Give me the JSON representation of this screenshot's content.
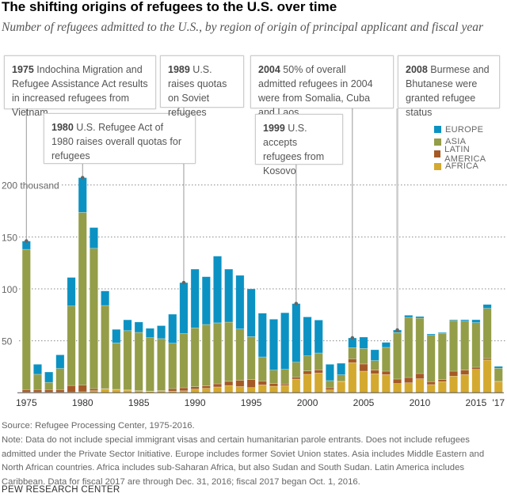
{
  "header": {
    "title": "The shifting origins of refugees to the U.S. over time",
    "subtitle": "Number of refugees admitted to the U.S., by region of origin of principal applicant and fiscal year"
  },
  "annotations": [
    {
      "year": "1975",
      "text": " Indochina Migration and Refugee Assistance Act results in increased refugees from Vietnam"
    },
    {
      "year": "1980",
      "text": " U.S. Refugee Act of 1980 raises overall quotas for refugees"
    },
    {
      "year": "1989",
      "text": " U.S. raises quotas on Soviet refugees"
    },
    {
      "year": "2004",
      "text": " 50% of overall admitted refugees in 2004 were from Somalia, Cuba and Laos"
    },
    {
      "year": "1999",
      "text": " U.S. accepts refugees from Kosovo"
    },
    {
      "year": "2008",
      "text": " Burmese and Bhutanese were granted refugee status"
    }
  ],
  "footer": {
    "source": "Source: Refugee Processing Center, 1975-2016.",
    "note": "Note: Data do not include special immigrant visas and certain humanitarian parole entrants. Does not include refugees admitted under the Private Sector Initiative. Europe includes former Soviet Union states. Asia includes Middle Eastern and North African countries. Africa includes sub-Saharan Africa, but also Sudan and South Sudan. Latin America includes Caribbean. Data for fiscal 2017 are through Dec. 31, 2016; fiscal 2017 began Oct. 1, 2016.",
    "org": "PEW RESEARCH CENTER"
  },
  "chart_data": {
    "type": "bar",
    "stacked": true,
    "title": "The shifting origins of refugees to the U.S. over time",
    "subtitle": "Number of refugees admitted to the U.S., by region of origin of principal applicant and fiscal year",
    "unit": "thousand",
    "ylim": [
      0,
      210
    ],
    "yticks": [
      50,
      100,
      150,
      200
    ],
    "ytick_labels": [
      "50",
      "100",
      "150",
      "200 thousand"
    ],
    "grid": true,
    "legend_position": "right",
    "categories": [
      1975,
      1976,
      1977,
      1978,
      1979,
      1980,
      1981,
      1982,
      1983,
      1984,
      1985,
      1986,
      1987,
      1988,
      1989,
      1990,
      1991,
      1992,
      1993,
      1994,
      1995,
      1996,
      1997,
      1998,
      1999,
      2000,
      2001,
      2002,
      2003,
      2004,
      2005,
      2006,
      2007,
      2008,
      2009,
      2010,
      2011,
      2012,
      2013,
      2014,
      2015,
      2016,
      2017
    ],
    "xtick_labels": [
      {
        "year": 1975,
        "label": "1975"
      },
      {
        "year": 1980,
        "label": "1980"
      },
      {
        "year": 1985,
        "label": "1985"
      },
      {
        "year": 1990,
        "label": "1990"
      },
      {
        "year": 1995,
        "label": "1995"
      },
      {
        "year": 2000,
        "label": "2000"
      },
      {
        "year": 2005,
        "label": "2005"
      },
      {
        "year": 2010,
        "label": "2010"
      },
      {
        "year": 2015,
        "label": "2015"
      },
      {
        "year": 2017,
        "label": "'17"
      }
    ],
    "series": [
      {
        "name": "AFRICA",
        "color": "#d4a92f",
        "values": [
          0.5,
          0.5,
          0.5,
          0.5,
          0.5,
          1,
          2,
          3.5,
          2.8,
          2.5,
          1.8,
          1.3,
          1.8,
          1.6,
          1.9,
          3.5,
          4.3,
          5.6,
          7,
          6,
          5,
          7.6,
          6.3,
          6.9,
          13.2,
          17.8,
          19,
          2.8,
          10.7,
          29,
          20.8,
          18.3,
          17.5,
          8.9,
          9.6,
          13.5,
          7.9,
          10.7,
          16,
          17.5,
          22.6,
          31.5,
          10.4
        ]
      },
      {
        "name": "LATIN AMERICA",
        "color": "#a55a26",
        "values": [
          2.5,
          2.5,
          2.5,
          2.5,
          6.5,
          6.6,
          2,
          0.5,
          0.5,
          0.3,
          0.3,
          0.3,
          0.3,
          2.4,
          2.9,
          2.3,
          2.3,
          3,
          4,
          6,
          7.7,
          3.8,
          2.6,
          1.5,
          2,
          3.2,
          3,
          2,
          0.3,
          3.7,
          6.9,
          3.5,
          3.3,
          4.3,
          5.1,
          5,
          2.8,
          2,
          4.8,
          4.3,
          2,
          1.5,
          0.6
        ]
      },
      {
        "name": "ASIA",
        "color": "#949d48",
        "values": [
          135,
          14.8,
          7,
          20.4,
          76.5,
          166,
          135,
          80,
          44.7,
          57,
          56,
          51.4,
          50,
          43.7,
          52.2,
          56.6,
          59.1,
          58.7,
          57,
          49.4,
          41.3,
          23.1,
          12.9,
          14.2,
          14.2,
          14.5,
          16.3,
          6.9,
          6.3,
          10.7,
          14.9,
          9.2,
          22.9,
          44.7,
          57.9,
          53.3,
          44.6,
          44.3,
          48.7,
          47.2,
          42.9,
          48.2,
          12.6
        ]
      },
      {
        "name": "EUROPE",
        "color": "#0b92c3",
        "values": [
          8,
          9.6,
          10,
          13.1,
          27.5,
          33.4,
          20,
          14,
          13,
          10.4,
          10,
          9,
          12.5,
          27.9,
          49,
          56.6,
          46,
          64.2,
          51,
          51.6,
          46,
          42.1,
          49,
          54.4,
          56.4,
          37.5,
          31.7,
          15.7,
          11.1,
          9.4,
          11,
          10.4,
          4.8,
          2.5,
          2,
          1.6,
          1.3,
          1,
          0.8,
          1.3,
          2.8,
          3.8,
          1.8
        ]
      }
    ],
    "legend_order": [
      "EUROPE",
      "ASIA",
      "LATIN AMERICA",
      "AFRICA"
    ]
  }
}
